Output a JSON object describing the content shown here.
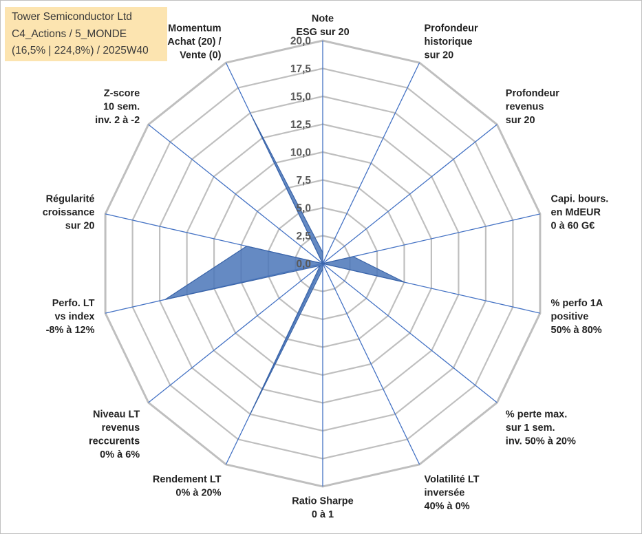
{
  "header": {
    "line1": "Tower Semiconductor Ltd",
    "line2": "C4_Actions / 5_MONDE",
    "line3": "(16,5% | 224,8%) / 2025W40"
  },
  "colors": {
    "grid": "#bfbfbf",
    "spoke": "#4472c4",
    "fill": "#4a76b8",
    "title_bg": "#fce4b0"
  },
  "chart_data": {
    "type": "radar",
    "title": "Tower Semiconductor Ltd",
    "rlim": [
      0,
      20
    ],
    "tick_step": 2.5,
    "tick_labels": [
      "0,0",
      "2,5",
      "5,0",
      "7,5",
      "10,0",
      "12,5",
      "15,0",
      "17,5",
      "20,0"
    ],
    "axes": [
      {
        "label": [
          "Note",
          "ESG sur 20"
        ]
      },
      {
        "label": [
          "Profondeur",
          "historique",
          "sur 20"
        ]
      },
      {
        "label": [
          "Profondeur",
          "revenus",
          "sur 20"
        ]
      },
      {
        "label": [
          "Capi. bours.",
          "en MdEUR",
          "0 à 60 G€"
        ]
      },
      {
        "label": [
          "% perfo 1A",
          "positive",
          "50% à 80%"
        ]
      },
      {
        "label": [
          "% perte max.",
          "sur 1 sem.",
          "inv. 50% à 20%"
        ]
      },
      {
        "label": [
          "Volatilité LT",
          "inversée",
          "40% à 0%"
        ]
      },
      {
        "label": [
          "Ratio Sharpe",
          "0 à 1"
        ]
      },
      {
        "label": [
          "Rendement LT",
          "0% à 20%"
        ]
      },
      {
        "label": [
          "Niveau LT",
          "revenus",
          "reccurents",
          "0% à 6%"
        ]
      },
      {
        "label": [
          "Perfo. LT",
          "vs index",
          "-8% à 12%"
        ]
      },
      {
        "label": [
          "Régularité",
          "croissance",
          "sur 20"
        ]
      },
      {
        "label": [
          "Z-score",
          "10 sem.",
          "inv. 2 à -2"
        ]
      },
      {
        "label": [
          "Momentum",
          "Achat (20) /",
          "Vente (0)"
        ]
      }
    ],
    "series": [
      {
        "name": "Tower Semiconductor Ltd",
        "values": [
          1.0,
          0.0,
          0.0,
          2.8,
          7.5,
          0.0,
          0.0,
          0.5,
          15.0,
          0.3,
          14.5,
          7.0,
          0.0,
          14.8
        ]
      }
    ]
  }
}
